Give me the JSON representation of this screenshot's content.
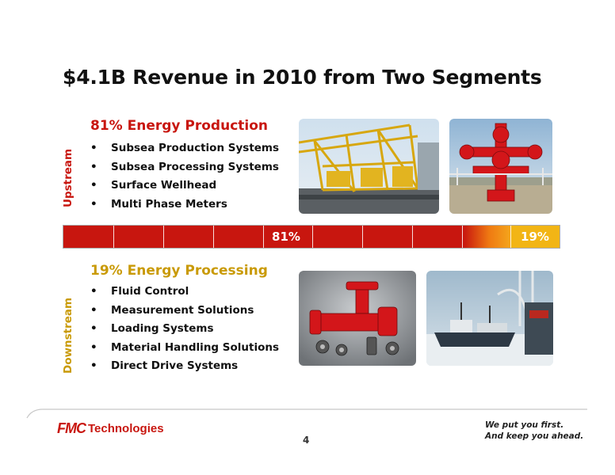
{
  "slide": {
    "title": "$4.1B Revenue in 2010 from Two Segments",
    "page_number": "4"
  },
  "upstream": {
    "side_label": "Upstream",
    "heading": "81% Energy Production",
    "bullet_symbol": "•",
    "items": [
      "Subsea Production Systems",
      "Subsea Processing Systems",
      "Surface Wellhead",
      "Multi Phase Meters"
    ]
  },
  "downstream": {
    "side_label": "Downstream",
    "heading": "19% Energy Processing",
    "bullet_symbol": "•",
    "items": [
      "Fluid Control",
      "Measurement Solutions",
      "Loading Systems",
      "Material Handling Solutions",
      "Direct Drive Systems"
    ]
  },
  "split_bar": {
    "production_label": "81%",
    "processing_label": "19%",
    "production_share": 81,
    "processing_share": 19,
    "colors": {
      "production": "#c8160f",
      "processing": "#f2b515"
    }
  },
  "footer": {
    "logo_mark": "FMC",
    "logo_text": "Technologies",
    "tagline_line1": "We put you first.",
    "tagline_line2": "And keep you ahead."
  },
  "colors": {
    "brand_red": "#c8160f",
    "brand_gold": "#c99a06"
  },
  "photos": [
    "subsea-structure-photo",
    "wellhead-tree-photo",
    "valves-photo",
    "loading-ship-photo"
  ]
}
